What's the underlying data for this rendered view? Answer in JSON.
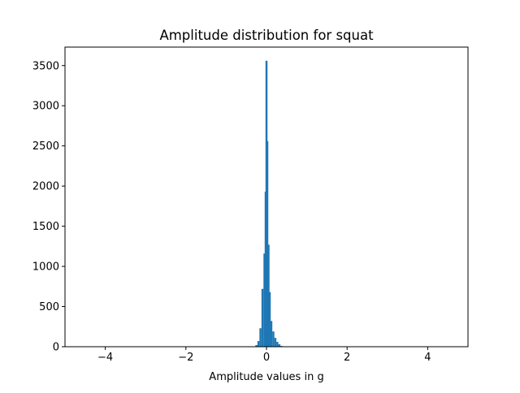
{
  "chart_data": {
    "type": "bar",
    "title": "Amplitude distribution for squat",
    "xlabel": "Amplitude values in g",
    "ylabel": "",
    "xlim": [
      -5.0,
      5.0
    ],
    "ylim": [
      0,
      3730
    ],
    "xticks": [
      -4,
      -2,
      0,
      2,
      4
    ],
    "xtick_labels": [
      "−4",
      "−2",
      "0",
      "2",
      "4"
    ],
    "yticks": [
      0,
      500,
      1000,
      1500,
      2000,
      2500,
      3000,
      3500
    ],
    "ytick_labels": [
      "0",
      "500",
      "1000",
      "1500",
      "2000",
      "2500",
      "3000",
      "3500"
    ],
    "grid": false,
    "legend": "none",
    "bar_color": "#1f77b4",
    "bin_width": 0.05,
    "bins": [
      {
        "x": -0.25,
        "value": 20
      },
      {
        "x": -0.2,
        "value": 70
      },
      {
        "x": -0.15,
        "value": 230
      },
      {
        "x": -0.1,
        "value": 720
      },
      {
        "x": -0.05,
        "value": 1160
      },
      {
        "x": -0.02,
        "value": 1930
      },
      {
        "x": 0.0,
        "value": 3560
      },
      {
        "x": 0.02,
        "value": 2560
      },
      {
        "x": 0.05,
        "value": 1270
      },
      {
        "x": 0.08,
        "value": 680
      },
      {
        "x": 0.12,
        "value": 320
      },
      {
        "x": 0.17,
        "value": 190
      },
      {
        "x": 0.22,
        "value": 110
      },
      {
        "x": 0.27,
        "value": 60
      },
      {
        "x": 0.32,
        "value": 30
      },
      {
        "x": 0.37,
        "value": 10
      }
    ]
  }
}
